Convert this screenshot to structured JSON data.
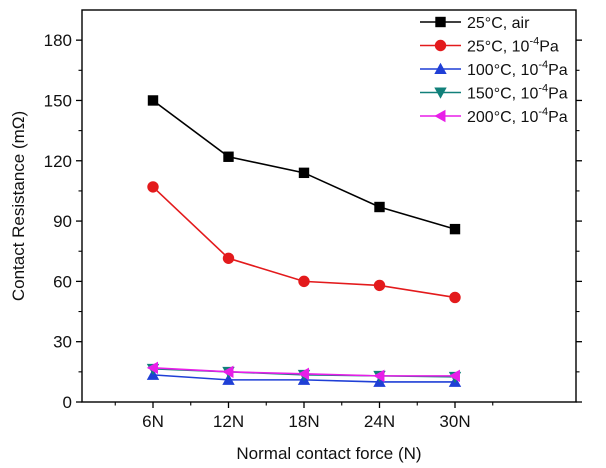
{
  "chart_data": {
    "type": "line",
    "title": "",
    "xlabel": "Normal contact force (N)",
    "ylabel": "Contact Resistance (mΩ)",
    "categories": [
      "6N",
      "12N",
      "18N",
      "24N",
      "30N"
    ],
    "ylim": [
      0,
      195
    ],
    "yticks": [
      0,
      30,
      60,
      90,
      120,
      150,
      180
    ],
    "grid": false,
    "legend_position": "top-right",
    "series": [
      {
        "name": "25°C, air",
        "label_main": "25°C, air",
        "label_sup": "",
        "label_end": "",
        "color": "#000000",
        "marker": "square",
        "values": [
          150,
          122,
          114,
          97,
          86
        ]
      },
      {
        "name": "25°C,   10-4Pa",
        "label_main": "25°C,   10",
        "label_sup": "-4",
        "label_end": "Pa",
        "color": "#e31a1c",
        "marker": "circle",
        "values": [
          107,
          71.5,
          60,
          58,
          52
        ]
      },
      {
        "name": "100°C, 10-4Pa",
        "label_main": "100°C, 10",
        "label_sup": "-4",
        "label_end": "Pa",
        "color": "#1f3fd6",
        "marker": "triangle-up",
        "values": [
          13.5,
          11,
          11,
          10,
          10
        ]
      },
      {
        "name": "150°C, 10-4Pa",
        "label_main": "150°C, 10",
        "label_sup": "-4",
        "label_end": "Pa",
        "color": "#11807a",
        "marker": "triangle-down",
        "values": [
          16.5,
          15,
          13.5,
          13,
          12.5
        ]
      },
      {
        "name": "200°C, 10-4Pa",
        "label_main": "200°C, 10",
        "label_sup": "-4",
        "label_end": "Pa",
        "color": "#e81ee8",
        "marker": "triangle-left",
        "values": [
          17,
          15,
          14,
          13,
          13
        ]
      }
    ]
  }
}
